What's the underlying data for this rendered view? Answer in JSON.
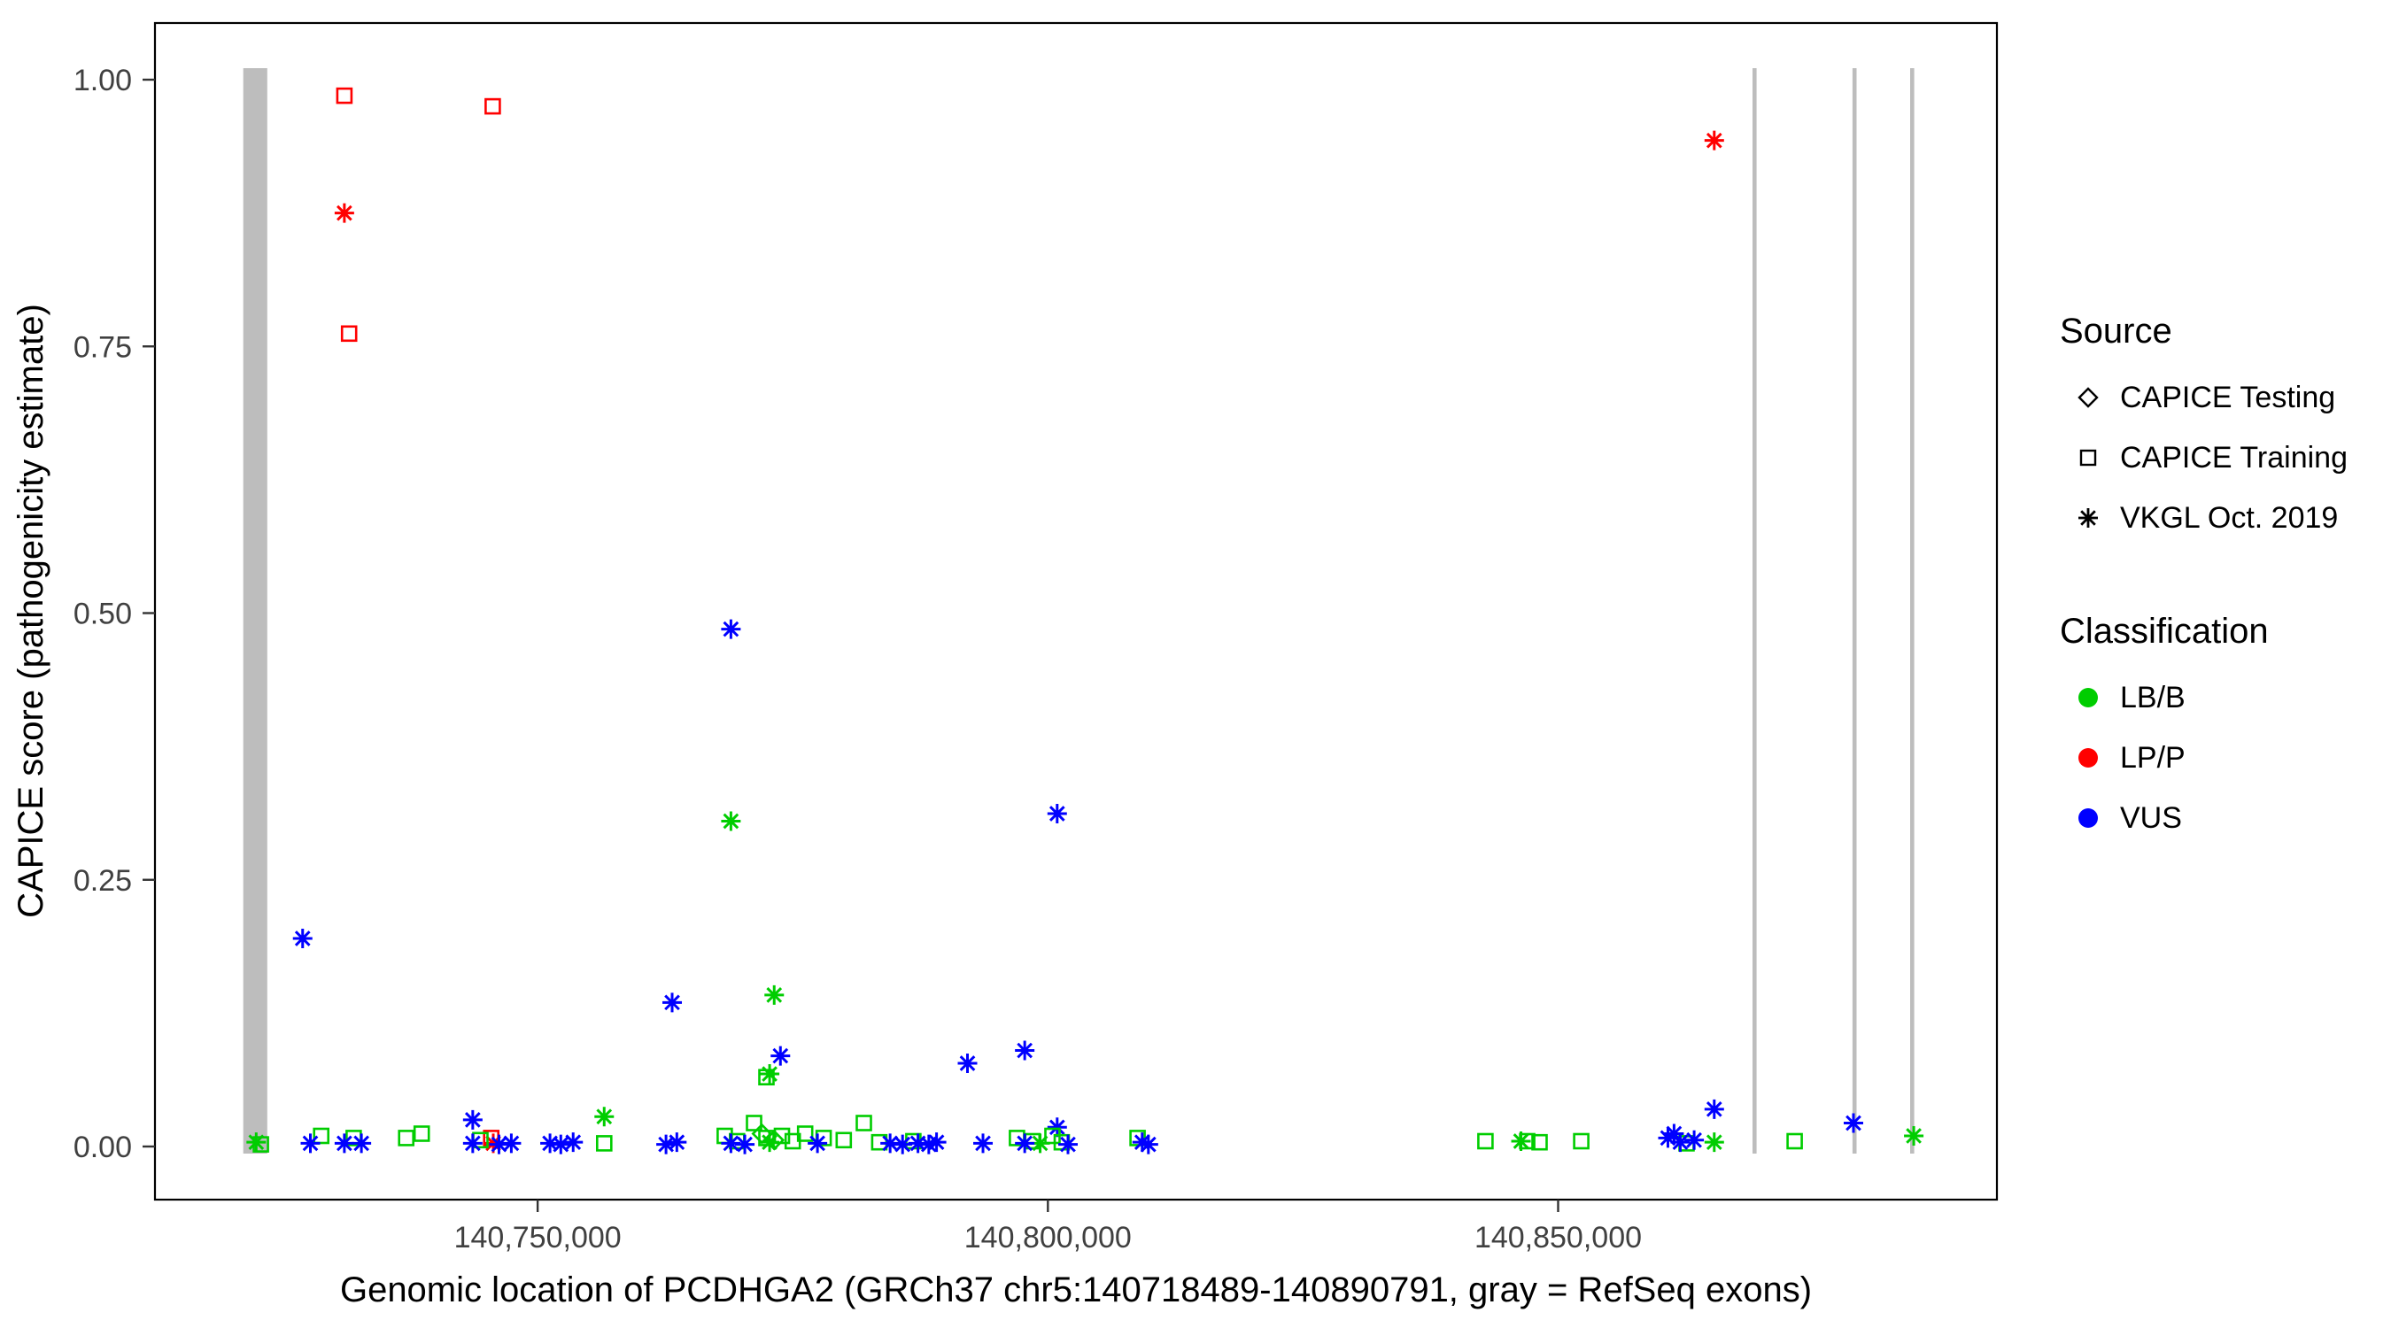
{
  "legend": {
    "source": {
      "title": "Source",
      "items": [
        {
          "label": "CAPICE Testing",
          "shape": "diamond"
        },
        {
          "label": "CAPICE Training",
          "shape": "square"
        },
        {
          "label": "VKGL Oct. 2019",
          "shape": "asterisk"
        }
      ]
    },
    "classification": {
      "title": "Classification",
      "items": [
        {
          "label": "LB/B",
          "color": "#00CD00"
        },
        {
          "label": "LP/P",
          "color": "#FF0000"
        },
        {
          "label": "VUS",
          "color": "#0000FF"
        }
      ]
    }
  },
  "chart_data": {
    "type": "scatter",
    "title": "",
    "xlabel": "Genomic location of PCDHGA2 (GRCh37 chr5:140718489-140890791, gray = RefSeq exons)",
    "ylabel": "CAPICE score (pathogenicity estimate)",
    "xlim": [
      140712500,
      140893000
    ],
    "ylim": [
      0,
      1
    ],
    "grid": false,
    "legend_position": "right",
    "x_ticks": [
      {
        "value": 140750000,
        "label": "140,750,000"
      },
      {
        "value": 140800000,
        "label": "140,800,000"
      },
      {
        "value": 140850000,
        "label": "140,850,000"
      }
    ],
    "y_ticks": [
      {
        "value": 0.0,
        "label": "0.00"
      },
      {
        "value": 0.25,
        "label": "0.25"
      },
      {
        "value": 0.5,
        "label": "0.50"
      },
      {
        "value": 0.75,
        "label": "0.75"
      },
      {
        "value": 1.0,
        "label": "1.00"
      }
    ],
    "exon_color": "#BDBDBD",
    "exons": [
      {
        "start": 140721150,
        "end": 140723500
      },
      {
        "start": 140869050,
        "end": 140869450
      },
      {
        "start": 140878850,
        "end": 140879250
      },
      {
        "start": 140884500,
        "end": 140884900
      }
    ],
    "source_codes": {
      "D": "CAPICE Testing",
      "S": "CAPICE Training",
      "A": "VKGL Oct. 2019"
    },
    "class_codes": {
      "G": "LB/B",
      "R": "LP/P",
      "B": "VUS"
    },
    "shape_by_source": {
      "D": "diamond",
      "S": "square",
      "A": "asterisk"
    },
    "color_by_class": {
      "G": "#00CD00",
      "R": "#FF0000",
      "B": "#0000FF"
    },
    "point_columns": [
      "x_genomic",
      "capice_score",
      "source_code",
      "class_code"
    ],
    "points": [
      [
        140731060,
        0.985,
        "S",
        "R"
      ],
      [
        140745600,
        0.975,
        "S",
        "R"
      ],
      [
        140731060,
        0.875,
        "A",
        "R"
      ],
      [
        140731520,
        0.762,
        "S",
        "R"
      ],
      [
        140865300,
        0.943,
        "A",
        "R"
      ],
      [
        140745450,
        0.008,
        "S",
        "R"
      ],
      [
        140745650,
        0.003,
        "A",
        "R"
      ],
      [
        140726970,
        0.195,
        "A",
        "B"
      ],
      [
        140743640,
        0.025,
        "A",
        "B"
      ],
      [
        140763180,
        0.135,
        "A",
        "B"
      ],
      [
        140768940,
        0.485,
        "A",
        "B"
      ],
      [
        140773790,
        0.085,
        "A",
        "B"
      ],
      [
        140792120,
        0.078,
        "A",
        "B"
      ],
      [
        140797730,
        0.09,
        "A",
        "B"
      ],
      [
        140800910,
        0.312,
        "A",
        "B"
      ],
      [
        140800910,
        0.018,
        "A",
        "B"
      ],
      [
        140865300,
        0.035,
        "A",
        "B"
      ],
      [
        140878940,
        0.022,
        "A",
        "B"
      ],
      [
        140768940,
        0.305,
        "A",
        "G"
      ],
      [
        140773180,
        0.142,
        "A",
        "G"
      ],
      [
        140772420,
        0.065,
        "S",
        "G"
      ],
      [
        140772730,
        0.068,
        "A",
        "G"
      ],
      [
        140756520,
        0.028,
        "A",
        "G"
      ],
      [
        140722880,
        0.002,
        "S",
        "G"
      ],
      [
        140728790,
        0.01,
        "S",
        "G"
      ],
      [
        140731970,
        0.008,
        "S",
        "G"
      ],
      [
        140737120,
        0.008,
        "S",
        "G"
      ],
      [
        140738640,
        0.012,
        "S",
        "G"
      ],
      [
        140744390,
        0.006,
        "S",
        "G"
      ],
      [
        140756520,
        0.003,
        "S",
        "G"
      ],
      [
        140768330,
        0.01,
        "S",
        "G"
      ],
      [
        140769540,
        0.005,
        "S",
        "G"
      ],
      [
        140771210,
        0.022,
        "S",
        "G"
      ],
      [
        140772420,
        0.008,
        "S",
        "G"
      ],
      [
        140773940,
        0.01,
        "S",
        "G"
      ],
      [
        140775000,
        0.005,
        "S",
        "G"
      ],
      [
        140776210,
        0.012,
        "S",
        "G"
      ],
      [
        140778030,
        0.008,
        "S",
        "G"
      ],
      [
        140780000,
        0.006,
        "S",
        "G"
      ],
      [
        140781970,
        0.022,
        "S",
        "G"
      ],
      [
        140783480,
        0.004,
        "S",
        "G"
      ],
      [
        140786820,
        0.005,
        "S",
        "G"
      ],
      [
        140796970,
        0.008,
        "S",
        "G"
      ],
      [
        140798480,
        0.005,
        "S",
        "G"
      ],
      [
        140800450,
        0.01,
        "S",
        "G"
      ],
      [
        140801360,
        0.004,
        "S",
        "G"
      ],
      [
        140808790,
        0.008,
        "S",
        "G"
      ],
      [
        140842880,
        0.005,
        "S",
        "G"
      ],
      [
        140846970,
        0.005,
        "S",
        "G"
      ],
      [
        140848180,
        0.004,
        "S",
        "G"
      ],
      [
        140852270,
        0.005,
        "S",
        "G"
      ],
      [
        140862580,
        0.003,
        "S",
        "G"
      ],
      [
        140873180,
        0.005,
        "S",
        "G"
      ],
      [
        140771970,
        0.012,
        "D",
        "G"
      ],
      [
        140773180,
        0.006,
        "D",
        "G"
      ],
      [
        140722420,
        0.004,
        "A",
        "G"
      ],
      [
        140772730,
        0.004,
        "A",
        "G"
      ],
      [
        140799240,
        0.003,
        "A",
        "G"
      ],
      [
        140846360,
        0.005,
        "A",
        "G"
      ],
      [
        140865300,
        0.004,
        "A",
        "G"
      ],
      [
        140884850,
        0.01,
        "A",
        "G"
      ],
      [
        140727730,
        0.003,
        "A",
        "B"
      ],
      [
        140731060,
        0.003,
        "A",
        "B"
      ],
      [
        140732730,
        0.003,
        "A",
        "B"
      ],
      [
        140743640,
        0.003,
        "A",
        "B"
      ],
      [
        140746210,
        0.002,
        "A",
        "B"
      ],
      [
        140747420,
        0.003,
        "A",
        "B"
      ],
      [
        140751210,
        0.003,
        "A",
        "B"
      ],
      [
        140752270,
        0.002,
        "A",
        "B"
      ],
      [
        140753480,
        0.004,
        "A",
        "B"
      ],
      [
        140762580,
        0.002,
        "A",
        "B"
      ],
      [
        140763640,
        0.004,
        "A",
        "B"
      ],
      [
        140768940,
        0.003,
        "A",
        "B"
      ],
      [
        140770300,
        0.002,
        "A",
        "B"
      ],
      [
        140777420,
        0.003,
        "A",
        "B"
      ],
      [
        140784540,
        0.003,
        "A",
        "B"
      ],
      [
        140785760,
        0.002,
        "A",
        "B"
      ],
      [
        140787270,
        0.003,
        "A",
        "B"
      ],
      [
        140788330,
        0.002,
        "A",
        "B"
      ],
      [
        140789090,
        0.004,
        "A",
        "B"
      ],
      [
        140793640,
        0.003,
        "A",
        "B"
      ],
      [
        140797730,
        0.003,
        "A",
        "B"
      ],
      [
        140801970,
        0.002,
        "A",
        "B"
      ],
      [
        140809240,
        0.004,
        "A",
        "B"
      ],
      [
        140809850,
        0.002,
        "A",
        "B"
      ],
      [
        140860760,
        0.008,
        "A",
        "B"
      ],
      [
        140861360,
        0.012,
        "A",
        "B"
      ],
      [
        140861970,
        0.004,
        "A",
        "B"
      ],
      [
        140863330,
        0.006,
        "A",
        "B"
      ]
    ]
  }
}
